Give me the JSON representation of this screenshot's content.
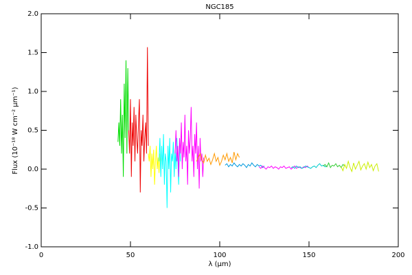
{
  "chart_data": {
    "type": "line",
    "title": "NGC185",
    "xlabel": "λ (μm)",
    "ylabel": "Flux (10⁻¹⁸ W cm⁻² μm⁻¹)",
    "xlim": [
      0,
      200
    ],
    "xticks": [
      0,
      50,
      100,
      150,
      200
    ],
    "ylim": [
      -1.0,
      2.0
    ],
    "yticks": [
      {
        "value": -1.0,
        "label": "-1.0"
      },
      {
        "value": -0.5,
        "label": "-0.5"
      },
      {
        "value": 0.0,
        "label": "0.0"
      },
      {
        "value": 0.5,
        "label": "0.5"
      },
      {
        "value": 1.0,
        "label": "1.0"
      },
      {
        "value": 1.5,
        "label": "1.5"
      },
      {
        "value": 2.0,
        "label": "2.0"
      }
    ],
    "series": [
      {
        "color": "#00dd00",
        "x": [
          43,
          43.5,
          44,
          44.5,
          45,
          45.5,
          46,
          46.5,
          47,
          47.5,
          48,
          48.5,
          49
        ],
        "values": [
          0.35,
          0.6,
          0.3,
          0.9,
          0.2,
          0.7,
          -0.1,
          1.1,
          0.4,
          1.4,
          0.2,
          1.3,
          0.5
        ]
      },
      {
        "color": "#ee0000",
        "x": [
          49,
          49.5,
          50,
          50.5,
          51,
          51.5,
          52,
          52.5,
          53,
          53.5,
          54,
          54.5,
          55,
          55.5,
          56,
          56.5,
          57,
          57.5,
          58,
          58.5,
          59,
          59.5,
          60
        ],
        "values": [
          0.5,
          0.2,
          0.9,
          -0.1,
          0.6,
          0.3,
          0.8,
          0.1,
          0.7,
          0.4,
          0.2,
          0.6,
          0.9,
          -0.3,
          0.5,
          0.3,
          0.7,
          0.1,
          0.4,
          0.6,
          0.2,
          1.57,
          0.3
        ]
      },
      {
        "color": "#ffff00",
        "x": [
          60,
          60.5,
          61,
          61.5,
          62,
          62.5,
          63,
          63.5,
          64,
          64.5,
          65,
          65.5,
          66,
          66.5,
          67
        ],
        "values": [
          0.2,
          0.1,
          0.3,
          -0.1,
          0.2,
          0.0,
          0.25,
          -0.2,
          0.1,
          0.3,
          0.0,
          0.15,
          -0.05,
          0.2,
          0.1
        ]
      },
      {
        "color": "#00ffff",
        "x": [
          66,
          66.5,
          67,
          67.5,
          68,
          68.5,
          69,
          69.5,
          70,
          70.5,
          71,
          71.5,
          72,
          72.5,
          73,
          73.5,
          74,
          74.5,
          75,
          75.5,
          76,
          76.5,
          77,
          77.5,
          78
        ],
        "values": [
          0.1,
          0.4,
          -0.1,
          0.3,
          0.0,
          0.45,
          -0.2,
          0.2,
          0.1,
          -0.5,
          0.3,
          0.0,
          0.4,
          -0.3,
          0.2,
          0.1,
          0.35,
          -0.1,
          0.25,
          0.0,
          0.4,
          0.1,
          -0.2,
          0.3,
          0.1
        ]
      },
      {
        "color": "#ff00ff",
        "x": [
          75,
          75.5,
          76,
          76.5,
          77,
          77.5,
          78,
          78.5,
          79,
          79.5,
          80,
          80.5,
          81,
          81.5,
          82,
          82.5,
          83,
          83.5,
          84,
          84.5,
          85,
          85.5,
          86,
          86.5,
          87,
          87.5,
          88,
          88.5,
          89,
          89.5,
          90,
          90.5,
          91
        ],
        "values": [
          0.2,
          0.5,
          0.1,
          0.3,
          -0.1,
          0.4,
          0.2,
          0.6,
          0.0,
          0.35,
          0.15,
          0.7,
          0.1,
          0.3,
          -0.2,
          0.5,
          0.2,
          0.4,
          0.8,
          0.1,
          0.3,
          -0.1,
          0.45,
          0.2,
          0.6,
          0.0,
          0.3,
          -0.25,
          0.4,
          0.1,
          0.2,
          -0.1,
          0.15
        ]
      },
      {
        "color": "#ff9900",
        "x": [
          87,
          88,
          89,
          90,
          91,
          92,
          93,
          94,
          95,
          96,
          97,
          98,
          99,
          100,
          101,
          102,
          103,
          104,
          105,
          106,
          107,
          108,
          109,
          110,
          111
        ],
        "values": [
          0.1,
          0.15,
          0.2,
          0.12,
          0.08,
          0.18,
          0.1,
          0.14,
          0.06,
          0.12,
          0.2,
          0.1,
          0.15,
          0.05,
          0.1,
          0.18,
          0.12,
          0.2,
          0.1,
          0.15,
          0.08,
          0.22,
          0.12,
          0.2,
          0.15
        ]
      },
      {
        "color": "#0099dd",
        "x": [
          103,
          104,
          105,
          106,
          107,
          108,
          109,
          110,
          111,
          112,
          113,
          114,
          115,
          116,
          117,
          118,
          119,
          120,
          121,
          122,
          123,
          124,
          125
        ],
        "values": [
          0.05,
          0.07,
          0.03,
          0.06,
          0.04,
          0.08,
          0.05,
          0.03,
          0.06,
          0.04,
          0.07,
          0.05,
          0.02,
          0.06,
          0.04,
          0.08,
          0.05,
          0.03,
          0.06,
          0.04,
          0.05,
          0.02,
          0.04
        ]
      },
      {
        "color": "#ff00ff",
        "x": [
          122,
          123,
          124,
          125,
          126,
          127,
          128,
          129,
          130,
          131,
          132,
          133,
          134,
          135,
          136,
          137,
          138,
          139,
          140,
          141,
          142,
          143,
          144,
          145,
          146,
          147,
          148,
          149,
          150
        ],
        "values": [
          0.03,
          0.01,
          0.04,
          0.02,
          0.0,
          0.03,
          0.02,
          0.04,
          0.01,
          0.03,
          0.02,
          0.0,
          0.03,
          0.02,
          0.04,
          0.01,
          0.02,
          0.03,
          0.0,
          0.02,
          0.04,
          0.01,
          0.03,
          0.02,
          0.01,
          0.03,
          0.02,
          0.04,
          0.02
        ]
      },
      {
        "color": "#00cccc",
        "x": [
          140,
          141,
          142,
          143,
          144,
          145,
          146,
          147,
          148,
          149,
          150,
          151,
          152,
          153,
          154,
          155,
          156,
          157,
          158,
          159,
          160
        ],
        "values": [
          0.02,
          0.03,
          0.01,
          0.04,
          0.02,
          0.03,
          0.01,
          0.02,
          0.04,
          0.03,
          0.02,
          0.01,
          0.03,
          0.04,
          0.02,
          0.05,
          0.07,
          0.04,
          0.05,
          0.03,
          0.04
        ]
      },
      {
        "color": "#33cc33",
        "x": [
          158,
          159,
          160,
          161,
          162,
          163,
          164,
          165,
          166,
          167,
          168,
          169,
          170
        ],
        "values": [
          0.04,
          0.06,
          0.03,
          0.08,
          0.02,
          0.05,
          0.04,
          0.07,
          0.03,
          0.05,
          0.02,
          0.06,
          0.04
        ]
      },
      {
        "color": "#ccee00",
        "x": [
          168,
          169,
          170,
          171,
          172,
          173,
          174,
          175,
          176,
          177,
          178,
          179,
          180,
          181,
          182,
          183,
          184,
          185,
          186,
          187,
          188,
          189
        ],
        "values": [
          0.03,
          -0.02,
          0.06,
          0.01,
          0.1,
          0.02,
          -0.03,
          0.08,
          0.0,
          0.05,
          0.1,
          -0.01,
          0.04,
          0.07,
          0.0,
          0.09,
          0.02,
          0.06,
          -0.02,
          0.04,
          0.07,
          -0.03
        ]
      }
    ]
  }
}
